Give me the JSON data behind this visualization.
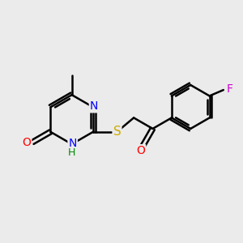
{
  "background_color": "#ebebeb",
  "atom_colors": {
    "C": "#000000",
    "N": "#0000ff",
    "O": "#ff0000",
    "S": "#ccaa00",
    "F": "#cc00cc",
    "H": "#008800"
  },
  "bond_color": "#000000",
  "bond_width": 1.8,
  "font_size": 10,
  "figsize": [
    3.0,
    3.0
  ],
  "dpi": 100,
  "xlim": [
    -2.8,
    3.2
  ],
  "ylim": [
    -1.8,
    2.0
  ]
}
